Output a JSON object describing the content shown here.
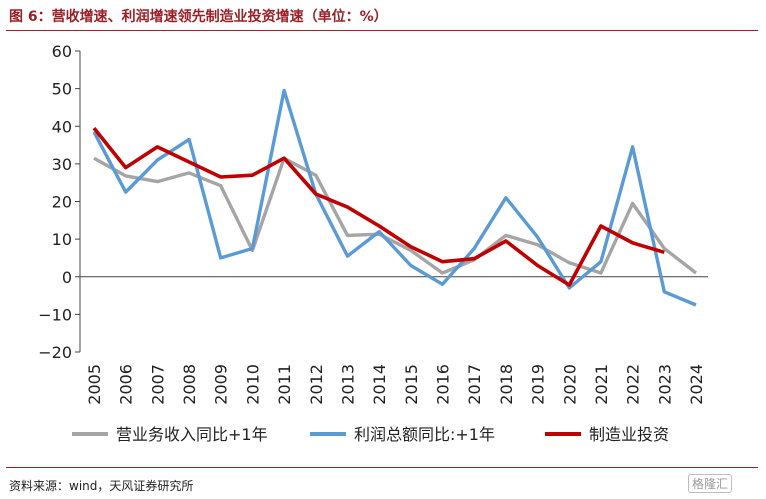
{
  "header": {
    "title": "图 6：营收增速、利润增速领先制造业投资增速（单位：%）"
  },
  "footer": {
    "source": "资料来源：wind，天风证券研究所",
    "watermark": "格隆汇"
  },
  "chart_data": {
    "type": "line",
    "title": "图 6：营收增速、利润增速领先制造业投资增速（单位：%）",
    "xlabel": "",
    "ylabel": "",
    "ylim": [
      -20,
      60
    ],
    "yticks": [
      -20,
      -10,
      0,
      10,
      20,
      30,
      40,
      50,
      60
    ],
    "ytick_labels": [
      "−20",
      "−10",
      "0",
      "10",
      "20",
      "30",
      "40",
      "50",
      "60"
    ],
    "categories": [
      "2005",
      "2006",
      "2007",
      "2008",
      "2009",
      "2010",
      "2011",
      "2012",
      "2013",
      "2014",
      "2015",
      "2016",
      "2017",
      "2018",
      "2019",
      "2020",
      "2021",
      "2022",
      "2023",
      "2024"
    ],
    "legend_position": "bottom",
    "series": [
      {
        "name": "营业务收入同比+1年",
        "color": "#a5a5a5",
        "values": [
          31.5,
          26.8,
          25.3,
          27.6,
          24.2,
          7.0,
          31.5,
          27.0,
          11.0,
          11.3,
          7.0,
          1.0,
          4.5,
          11.0,
          8.5,
          3.7,
          1.0,
          19.5,
          7.5,
          1.0
        ]
      },
      {
        "name": "利润总额同比:+1年",
        "color": "#5b9bd5",
        "values": [
          38.5,
          22.5,
          31.0,
          36.5,
          5.0,
          7.5,
          49.5,
          22.0,
          5.5,
          12.0,
          3.0,
          -2.0,
          7.5,
          21.0,
          10.5,
          -3.0,
          4.0,
          34.5,
          -4.0,
          -7.5
        ]
      },
      {
        "name": "制造业投资",
        "color": "#c00000",
        "values": [
          39.5,
          29.0,
          34.5,
          30.5,
          26.5,
          27.0,
          31.5,
          22.0,
          18.5,
          13.5,
          8.0,
          4.0,
          4.8,
          9.5,
          3.0,
          -2.2,
          13.5,
          9.0,
          6.5,
          null
        ]
      }
    ]
  }
}
